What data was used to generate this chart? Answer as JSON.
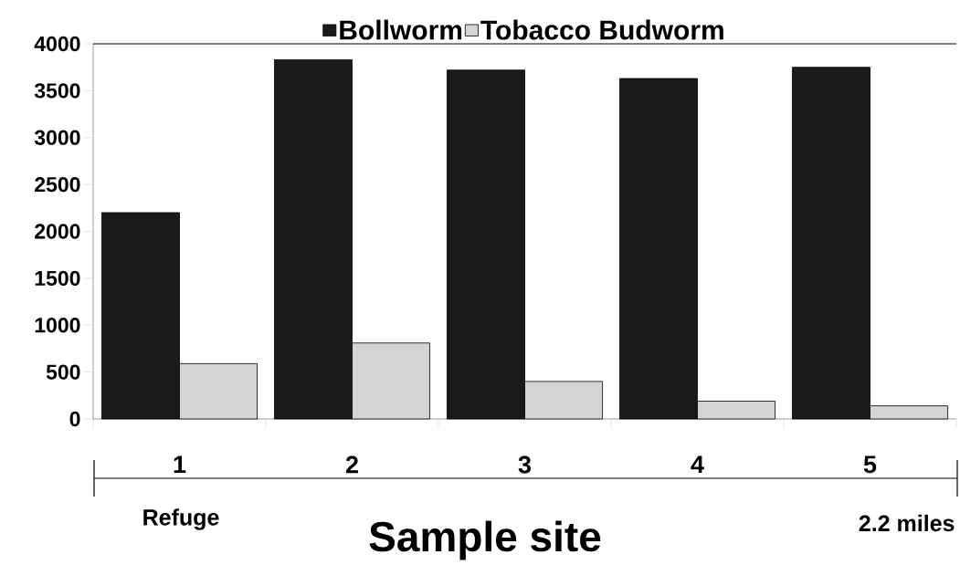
{
  "chart_data": {
    "type": "bar",
    "xlabel": "Sample site",
    "categories": [
      "1",
      "2",
      "3",
      "4",
      "5"
    ],
    "series": [
      {
        "name": "Bollworm",
        "color": "#1a1a1a",
        "values": [
          2200,
          3830,
          3720,
          3630,
          3750
        ]
      },
      {
        "name": "Tobacco Budworm",
        "color": "#d4d4d4",
        "values": [
          590,
          810,
          400,
          190,
          140
        ]
      }
    ],
    "ylim": [
      0,
      4000
    ],
    "yticks": [
      0,
      500,
      1000,
      1500,
      2000,
      2500,
      3000,
      3500,
      4000
    ],
    "legend": "top",
    "grid": false,
    "annotations": [
      "Refuge",
      "2.2 miles"
    ]
  }
}
